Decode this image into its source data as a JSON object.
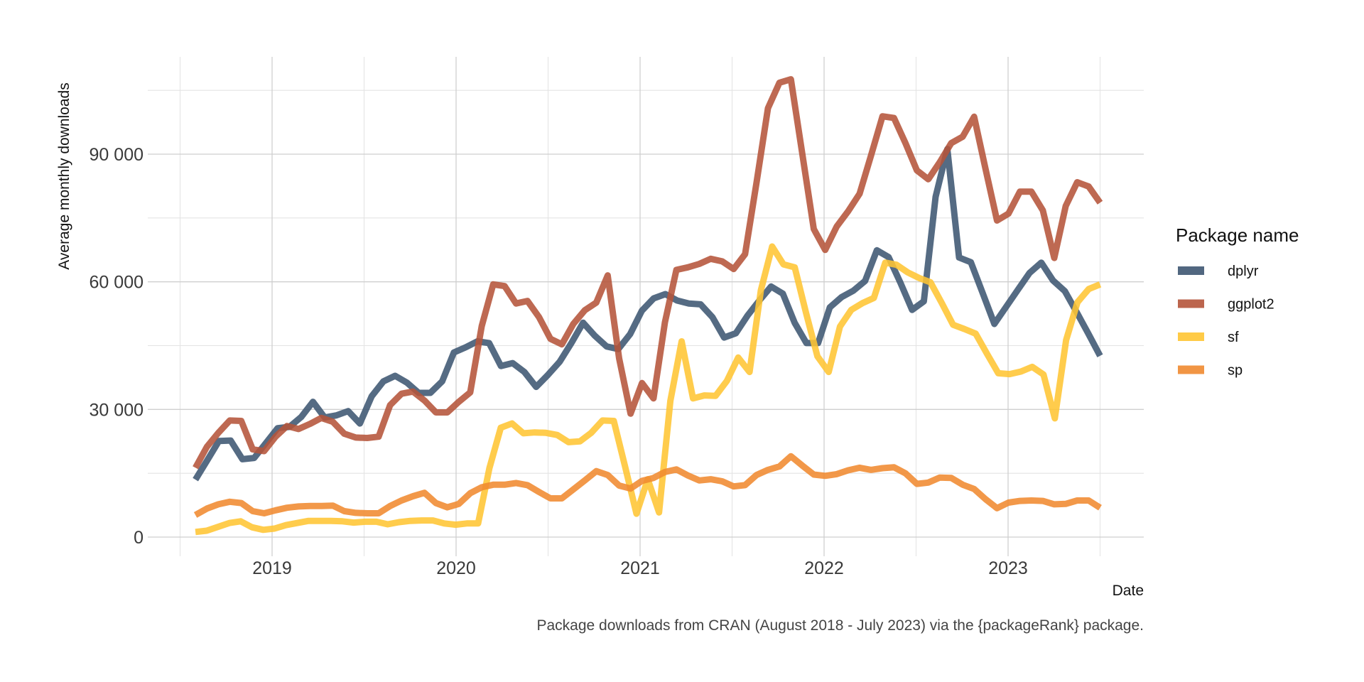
{
  "chart_data": {
    "type": "line",
    "title": "",
    "xlabel": "Date",
    "ylabel": "Average monthly downloads",
    "caption": "Package downloads from CRAN (August 2018 - July 2023) via the {packageRank} package.",
    "x_start": "2018-08",
    "x_end": "2023-07",
    "x_ticks": [
      "2019",
      "2020",
      "2021",
      "2022",
      "2023"
    ],
    "y_ticks": [
      0,
      30000,
      60000,
      90000
    ],
    "y_tick_labels": [
      "0",
      "30 000",
      "60 000",
      "90 000"
    ],
    "ylim": [
      -4000,
      112000
    ],
    "grid": true,
    "legend": {
      "title": "Package name",
      "position": "right"
    },
    "series": [
      {
        "name": "dplyr",
        "color": "#3e5672",
        "values": [
          13500,
          18000,
          22600,
          22700,
          18300,
          18600,
          22100,
          25600,
          25900,
          28200,
          31800,
          28100,
          28600,
          29600,
          26700,
          33100,
          36600,
          37900,
          36300,
          33900,
          33900,
          36600,
          43400,
          44600,
          46000,
          45600,
          40200,
          40900,
          38800,
          35300,
          38100,
          41200,
          45600,
          50400,
          47300,
          44800,
          44200,
          47700,
          53200,
          56100,
          57100,
          55600,
          54900,
          54700,
          51700,
          46900,
          47900,
          52100,
          55600,
          58900,
          57200,
          50400,
          45600,
          45600,
          54000,
          56400,
          57900,
          60200,
          67400,
          65800,
          59800,
          53400,
          55400,
          80000,
          91200,
          65700,
          64600,
          57400,
          50100,
          54100,
          58100,
          62100,
          64500,
          60300,
          57800,
          52900,
          47800,
          42600
        ]
      },
      {
        "name": "ggplot2",
        "color": "#b5543a",
        "values": [
          16300,
          21200,
          24500,
          27400,
          27300,
          20600,
          20200,
          23600,
          26100,
          25400,
          26600,
          28000,
          27100,
          24300,
          23400,
          23300,
          23600,
          31000,
          33700,
          34200,
          32100,
          29300,
          29300,
          31800,
          34000,
          49600,
          59400,
          59000,
          54900,
          55500,
          51700,
          46600,
          45300,
          50100,
          53300,
          55100,
          61500,
          42000,
          29000,
          36200,
          32600,
          50500,
          62800,
          63400,
          64200,
          65400,
          64800,
          63000,
          66500,
          83300,
          100800,
          106800,
          107600,
          90000,
          72400,
          67500,
          73000,
          76600,
          80700,
          89700,
          98900,
          98500,
          92600,
          86200,
          84100,
          88100,
          92600,
          94100,
          98800,
          86500,
          74400,
          76000,
          81200,
          81200,
          76800,
          65600,
          77800,
          83400,
          82400,
          78600
        ]
      },
      {
        "name": "sf",
        "color": "#ffc533",
        "values": [
          1200,
          1500,
          2400,
          3300,
          3700,
          2300,
          1700,
          2000,
          2800,
          3300,
          3800,
          3800,
          3800,
          3700,
          3400,
          3600,
          3600,
          3000,
          3500,
          3800,
          3900,
          3900,
          3200,
          2900,
          3200,
          3200,
          16200,
          25700,
          26700,
          24400,
          24600,
          24500,
          24000,
          22300,
          22500,
          24500,
          27400,
          27300,
          16500,
          5500,
          13600,
          5800,
          32000,
          46000,
          32600,
          33300,
          33200,
          36700,
          42200,
          38800,
          58000,
          68300,
          64100,
          63400,
          52700,
          42500,
          38800,
          49500,
          53400,
          55000,
          56200,
          64500,
          64000,
          62200,
          60900,
          59900,
          55000,
          49900,
          48900,
          47800,
          43100,
          38500,
          38300,
          38900,
          40000,
          38200,
          27900,
          46300,
          55200,
          58300,
          59400
        ]
      },
      {
        "name": "sp",
        "color": "#f08a30",
        "values": [
          5200,
          6700,
          7700,
          8300,
          8000,
          6100,
          5600,
          6300,
          6900,
          7200,
          7300,
          7300,
          7400,
          6100,
          5700,
          5600,
          5600,
          7300,
          8600,
          9600,
          10400,
          8000,
          7000,
          7800,
          10300,
          11700,
          12300,
          12300,
          12700,
          12200,
          10600,
          9100,
          9100,
          11200,
          13300,
          15500,
          14600,
          12100,
          11400,
          13200,
          13900,
          15300,
          15900,
          14500,
          13300,
          13600,
          13100,
          11900,
          12200,
          14600,
          15800,
          16600,
          19000,
          16800,
          14700,
          14400,
          14800,
          15700,
          16300,
          15800,
          16200,
          16400,
          15000,
          12500,
          12800,
          14000,
          13900,
          12300,
          11300,
          8900,
          6800,
          8100,
          8500,
          8600,
          8500,
          7700,
          7800,
          8600,
          8600,
          6900
        ]
      }
    ]
  }
}
